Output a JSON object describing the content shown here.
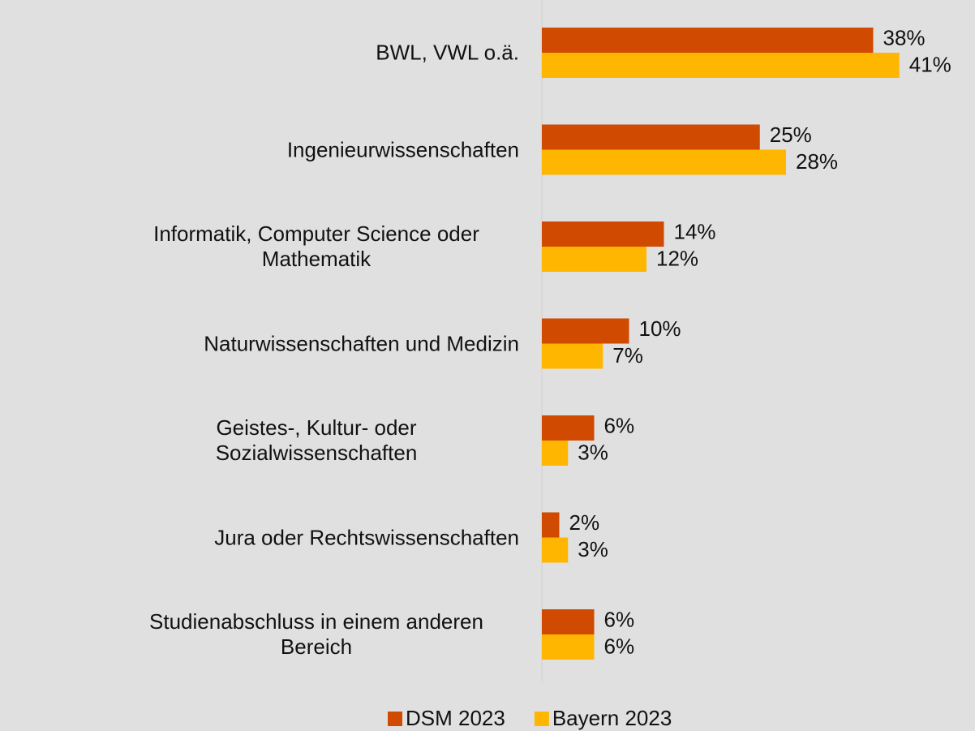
{
  "chart_data": {
    "type": "bar",
    "orientation": "horizontal",
    "categories": [
      "BWL, VWL o.ä.",
      "Ingenieurwissenschaften",
      "Informatik, Computer Science oder Mathematik",
      "Naturwissenschaften und Medizin",
      "Geistes-, Kultur- oder Sozialwissenschaften",
      "Jura oder Rechtswissenschaften",
      "Studienabschluss in einem anderen Bereich"
    ],
    "series": [
      {
        "name": "DSM 2023",
        "color": "#d04a02",
        "values": [
          38,
          25,
          14,
          10,
          6,
          2,
          6
        ],
        "value_labels": [
          "38%",
          "25%",
          "14%",
          "10%",
          "6%",
          "2%",
          "6%"
        ]
      },
      {
        "name": "Bayern 2023",
        "color": "#ffb600",
        "values": [
          41,
          28,
          12,
          7,
          3,
          3,
          6
        ],
        "value_labels": [
          "41%",
          "28%",
          "12%",
          "7%",
          "3%",
          "3%",
          "6%"
        ]
      }
    ],
    "xlim": [
      0,
      50
    ],
    "legend": "bottom"
  }
}
